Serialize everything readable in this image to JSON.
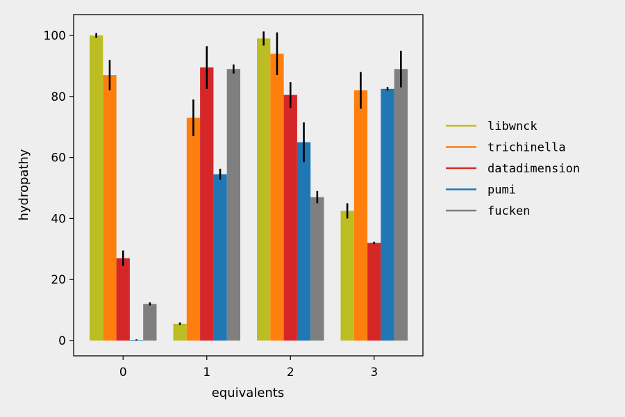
{
  "chart_data": {
    "type": "bar",
    "title": "",
    "xlabel": "equivalents",
    "ylabel": "hydropathy",
    "categories": [
      "0",
      "1",
      "2",
      "3"
    ],
    "ylim": [
      -5,
      106
    ],
    "yticks": [
      0,
      20,
      40,
      60,
      80,
      100
    ],
    "grid": false,
    "legend_position": "right",
    "series": [
      {
        "name": "libwnck",
        "color": "#bcbd22",
        "values": [
          100.0,
          5.5,
          99.0,
          42.5
        ],
        "errors": [
          0.8,
          0.4,
          2.3,
          2.5
        ]
      },
      {
        "name": "trichinella",
        "color": "#ff7f0e",
        "values": [
          87.0,
          73.0,
          94.0,
          82.0
        ],
        "errors": [
          5.0,
          6.0,
          7.0,
          6.0
        ]
      },
      {
        "name": "datadimension",
        "color": "#d62728",
        "values": [
          27.0,
          89.5,
          80.5,
          32.0
        ],
        "errors": [
          2.5,
          7.0,
          4.2,
          0.4
        ]
      },
      {
        "name": "pumi",
        "color": "#1f77b4",
        "values": [
          0.2,
          54.5,
          65.0,
          82.5
        ],
        "errors": [
          0.2,
          1.8,
          6.5,
          0.6
        ]
      },
      {
        "name": "fucken",
        "color": "#7f7f7f",
        "values": [
          12.0,
          89.0,
          47.0,
          89.0
        ],
        "errors": [
          0.5,
          1.5,
          2.0,
          6.0
        ]
      }
    ]
  }
}
